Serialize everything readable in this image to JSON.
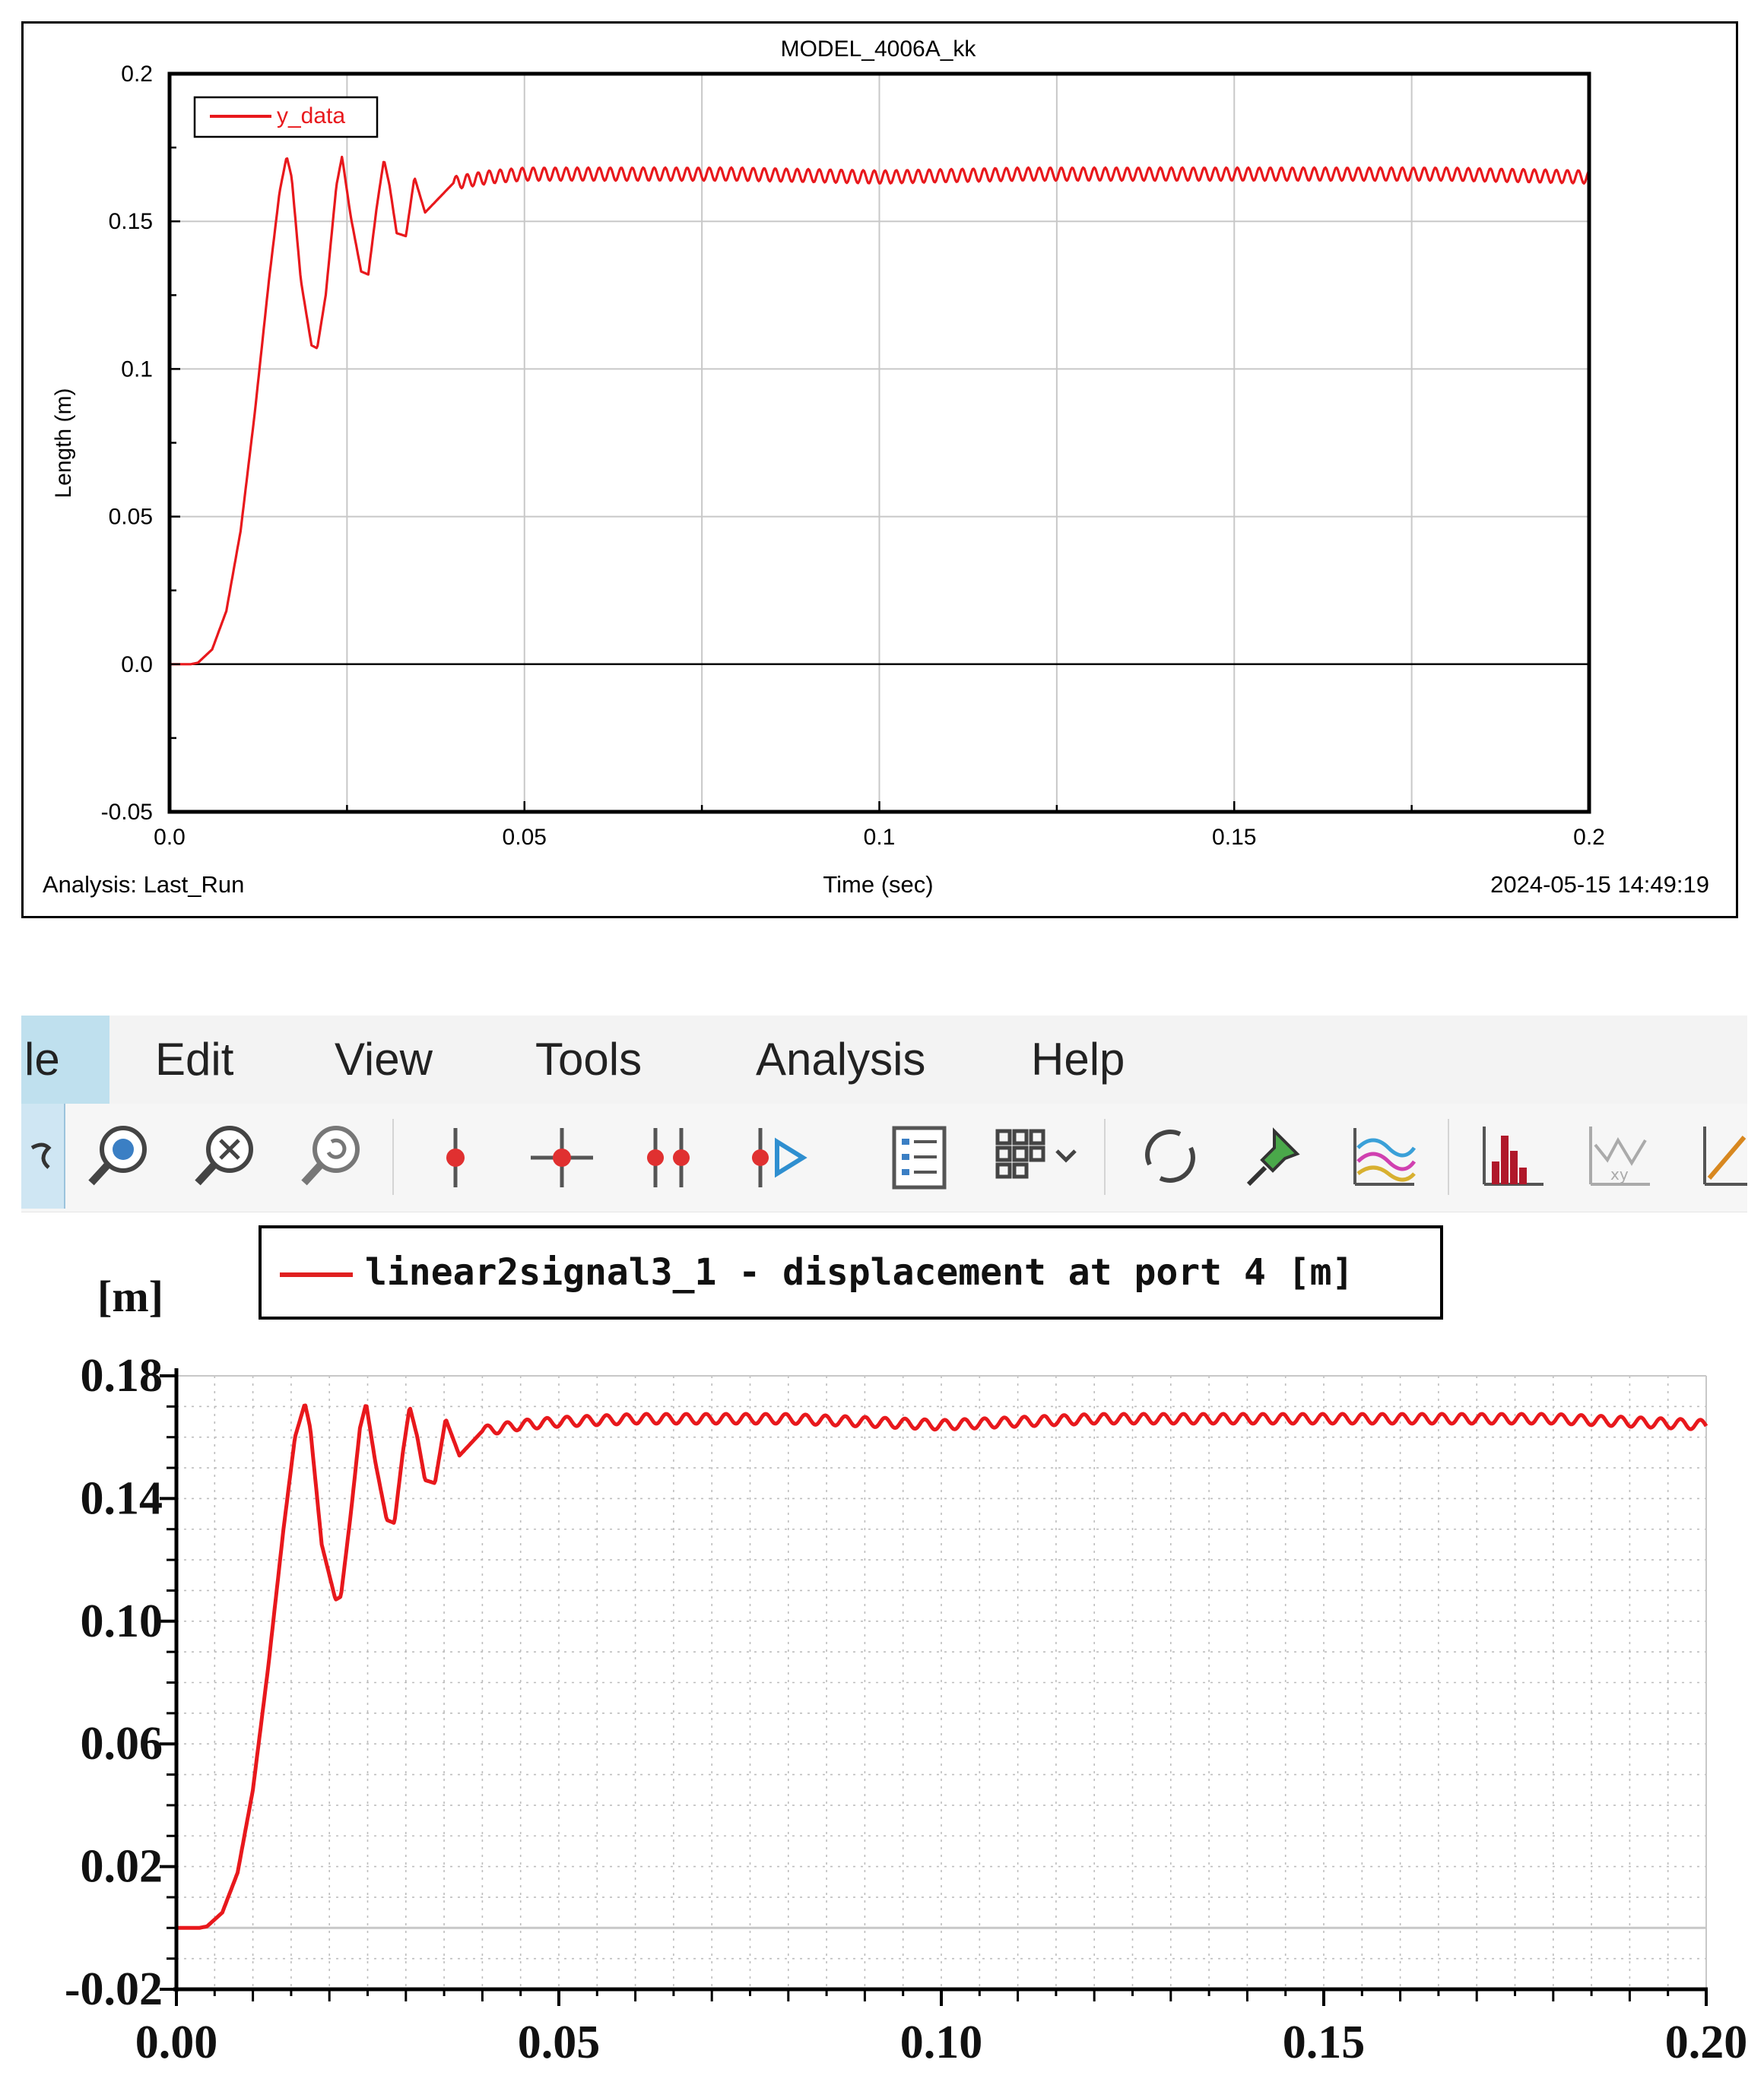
{
  "colors": {
    "series": "#e8181c",
    "axis": "#000000",
    "grid": "#c8c8c8",
    "grid_dotted": "#bdbdbd"
  },
  "plot1": {
    "title": "MODEL_4006A_kk",
    "footer_left": "Analysis:  Last_Run",
    "footer_right": "2024-05-15 14:49:19"
  },
  "app": {
    "menu": {
      "file": "le",
      "edit": "Edit",
      "view": "View",
      "tools": "Tools",
      "analysis": "Analysis",
      "help": "Help"
    },
    "toolbar_icons": [
      "select-icon",
      "zoom-fit-icon",
      "zoom-box-icon",
      "zoom-back-icon",
      "marker-icon",
      "crosshair-marker-icon",
      "dual-marker-icon",
      "marker-play-icon",
      "list-icon",
      "grid-layout-icon",
      "refresh-icon",
      "pin-icon",
      "curves-icon",
      "histogram-icon",
      "xy-plot-icon",
      "plot-edit-icon"
    ]
  },
  "plot2": {
    "legend": "linear2signal3_1 - displacement at port 4 [m]",
    "ylabel": "[m]"
  },
  "chart_data": [
    {
      "type": "line",
      "title": "MODEL_4006A_kk",
      "xlabel": "Time (sec)",
      "ylabel": "Length (m)",
      "xlim": [
        0,
        0.2
      ],
      "ylim": [
        -0.05,
        0.2
      ],
      "xticks": [
        "0.0",
        "0.05",
        "0.1",
        "0.15",
        "0.2"
      ],
      "yticks": [
        "-0.05",
        "0.0",
        "0.05",
        "0.1",
        "0.15",
        "0.2"
      ],
      "grid": true,
      "legend_position": "top-left",
      "series": [
        {
          "name": "y_data",
          "x": [
            0,
            0.003,
            0.004,
            0.006,
            0.008,
            0.01,
            0.012,
            0.014,
            0.0155,
            0.0165,
            0.0172,
            0.0185,
            0.02,
            0.0208,
            0.022,
            0.0235,
            0.0243,
            0.0255,
            0.027,
            0.028,
            0.0292,
            0.0302,
            0.031,
            0.032,
            0.0333,
            0.0345,
            0.036,
            0.038,
            0.04,
            0.045,
            0.05,
            0.06,
            0.08,
            0.1,
            0.12,
            0.15,
            0.18,
            0.2
          ],
          "y": [
            0,
            0,
            0.0005,
            0.005,
            0.018,
            0.045,
            0.085,
            0.13,
            0.16,
            0.172,
            0.165,
            0.13,
            0.108,
            0.107,
            0.125,
            0.162,
            0.172,
            0.152,
            0.133,
            0.132,
            0.155,
            0.171,
            0.162,
            0.146,
            0.145,
            0.165,
            0.153,
            0.158,
            0.163,
            0.165,
            0.166,
            0.166,
            0.166,
            0.165,
            0.166,
            0.166,
            0.166,
            0.165
          ]
        }
      ]
    },
    {
      "type": "line",
      "xlabel": "",
      "ylabel": "[m]",
      "xlim": [
        0,
        0.2
      ],
      "ylim": [
        -0.02,
        0.18
      ],
      "xticks": [
        "0.00",
        "0.05",
        "0.10",
        "0.15",
        "0.20"
      ],
      "yticks": [
        "-0.02",
        "0.02",
        "0.06",
        "0.10",
        "0.14",
        "0.18"
      ],
      "grid": true,
      "legend_position": "top",
      "series": [
        {
          "name": "linear2signal3_1 - displacement at port 4 [m]",
          "x": [
            0,
            0.003,
            0.004,
            0.006,
            0.008,
            0.01,
            0.012,
            0.014,
            0.0155,
            0.0168,
            0.0175,
            0.019,
            0.0208,
            0.0215,
            0.0228,
            0.024,
            0.0248,
            0.026,
            0.0275,
            0.0285,
            0.0296,
            0.0305,
            0.0315,
            0.0325,
            0.0338,
            0.0352,
            0.037,
            0.04,
            0.045,
            0.05,
            0.06,
            0.08,
            0.1,
            0.12,
            0.15,
            0.18,
            0.2
          ],
          "y": [
            0,
            0,
            0.0005,
            0.005,
            0.018,
            0.045,
            0.085,
            0.13,
            0.16,
            0.171,
            0.163,
            0.125,
            0.107,
            0.108,
            0.135,
            0.163,
            0.171,
            0.152,
            0.133,
            0.132,
            0.155,
            0.17,
            0.16,
            0.146,
            0.145,
            0.166,
            0.154,
            0.162,
            0.164,
            0.165,
            0.166,
            0.166,
            0.164,
            0.166,
            0.166,
            0.166,
            0.164
          ]
        }
      ]
    }
  ]
}
